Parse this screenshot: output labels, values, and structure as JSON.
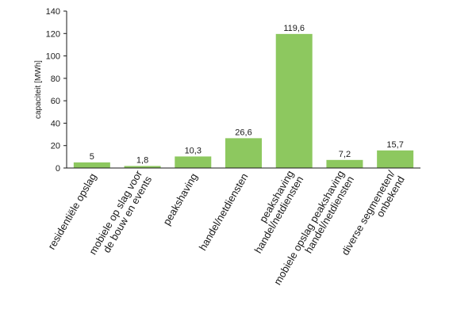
{
  "chart_data": {
    "type": "bar",
    "title": "",
    "xlabel": "",
    "ylabel": "capaciteit [MWh]",
    "ylim": [
      0,
      140
    ],
    "yticks": [
      0,
      20,
      40,
      60,
      80,
      100,
      120,
      140
    ],
    "ytick_labels": [
      "0",
      "20",
      "40",
      "60",
      "80",
      "100",
      "120",
      "140"
    ],
    "grid": false,
    "legend": "none",
    "bar_color": "#8dc85f",
    "categories": [
      [
        "residentiële opslag"
      ],
      [
        "mobiele op slag voor",
        "de bouw en events"
      ],
      [
        "peakshaving"
      ],
      [
        "handel/netdiensten"
      ],
      [
        "peakshaving",
        "handel/netdiensten"
      ],
      [
        "mobiele opslag peakshaving",
        "handel/netdiensten"
      ],
      [
        "diverse segmeneten/",
        "onbekend"
      ]
    ],
    "values": [
      5,
      1.8,
      10.3,
      26.6,
      119.6,
      7.2,
      15.7
    ],
    "value_labels": [
      "5",
      "1,8",
      "10,3",
      "26,6",
      "119,6",
      "7,2",
      "15,7"
    ]
  }
}
